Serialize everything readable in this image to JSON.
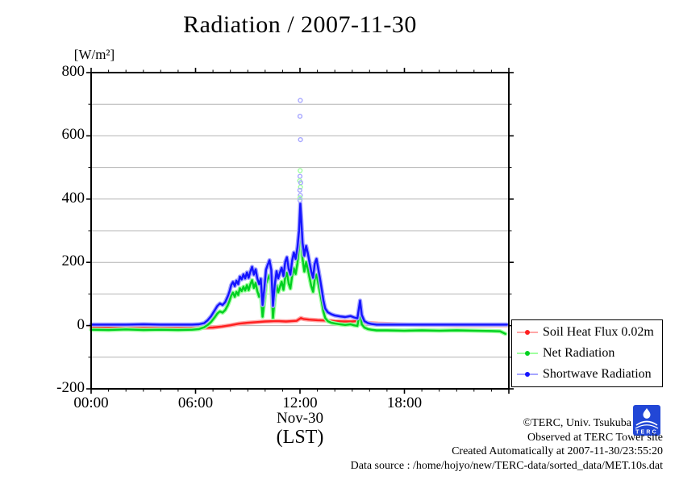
{
  "title": "Radiation / 2007-11-30",
  "y_unit_label": "[W/m²]",
  "colors": {
    "grid": "#b4b4b4",
    "axis": "#000000",
    "background": "#ffffff",
    "logo_blue": "#2247d6"
  },
  "chart_data": {
    "type": "line",
    "title": "Radiation / 2007-11-30",
    "ylabel": "[W/m²]",
    "xlabel_line1": "Nov-30",
    "xlabel_line2": "(LST)",
    "xlim": [
      0,
      24
    ],
    "ylim": [
      -200,
      800
    ],
    "x_ticks": [
      "00:00",
      "06:00",
      "12:00",
      "18:00"
    ],
    "x_tick_hours": [
      0,
      6,
      12,
      18
    ],
    "x_minor_step_hours": 1,
    "y_ticks": [
      -200,
      0,
      200,
      400,
      600,
      800
    ],
    "y_minor_step": 100,
    "grid": "horizontal lines every 100 W/m2",
    "legend_position": "outside lower right",
    "series": [
      {
        "id": "soil-heat-flux",
        "name": "Soil Heat Flux 0.02m",
        "color": "#ff2020",
        "halo": "#ffa6a6",
        "points": [
          [
            0,
            -7
          ],
          [
            1,
            -7
          ],
          [
            2,
            -8
          ],
          [
            3,
            -8
          ],
          [
            4,
            -8
          ],
          [
            5,
            -8
          ],
          [
            6,
            -8
          ],
          [
            6.5,
            -7
          ],
          [
            7,
            -6
          ],
          [
            7.5,
            -3
          ],
          [
            8,
            1
          ],
          [
            8.5,
            6
          ],
          [
            9,
            9
          ],
          [
            9.5,
            11
          ],
          [
            10,
            13
          ],
          [
            10.5,
            14
          ],
          [
            10.8,
            14
          ],
          [
            11.2,
            13
          ],
          [
            11.5,
            14
          ],
          [
            11.8,
            15
          ],
          [
            12.05,
            24
          ],
          [
            12.2,
            21
          ],
          [
            12.5,
            19
          ],
          [
            13,
            17
          ],
          [
            13.5,
            16
          ],
          [
            14,
            14
          ],
          [
            14.5,
            13
          ],
          [
            15,
            13
          ],
          [
            15.2,
            14
          ],
          [
            15.5,
            11
          ],
          [
            16,
            8
          ],
          [
            16.5,
            6
          ],
          [
            17,
            5
          ],
          [
            17.5,
            4
          ],
          [
            18,
            3
          ],
          [
            19,
            2
          ],
          [
            20,
            2
          ],
          [
            21,
            1
          ],
          [
            22,
            1
          ],
          [
            23,
            1
          ],
          [
            23.9,
            1
          ]
        ]
      },
      {
        "id": "net-radiation",
        "name": "Net Radiation",
        "color": "#00d020",
        "halo": "#9fff9f",
        "points": [
          [
            0,
            -13
          ],
          [
            1,
            -14
          ],
          [
            2,
            -12
          ],
          [
            3,
            -14
          ],
          [
            4,
            -13
          ],
          [
            5,
            -14
          ],
          [
            5.8,
            -13
          ],
          [
            6.2,
            -11
          ],
          [
            6.5,
            -5
          ],
          [
            6.7,
            2
          ],
          [
            6.9,
            12
          ],
          [
            7.1,
            26
          ],
          [
            7.25,
            38
          ],
          [
            7.4,
            45
          ],
          [
            7.55,
            41
          ],
          [
            7.7,
            49
          ],
          [
            7.85,
            64
          ],
          [
            7.95,
            78
          ],
          [
            8.05,
            95
          ],
          [
            8.15,
            104
          ],
          [
            8.25,
            91
          ],
          [
            8.35,
            107
          ],
          [
            8.45,
            97
          ],
          [
            8.55,
            118
          ],
          [
            8.65,
            109
          ],
          [
            8.75,
            123
          ],
          [
            8.85,
            111
          ],
          [
            8.95,
            128
          ],
          [
            9.05,
            112
          ],
          [
            9.15,
            131
          ],
          [
            9.25,
            144
          ],
          [
            9.35,
            119
          ],
          [
            9.45,
            135
          ],
          [
            9.55,
            109
          ],
          [
            9.65,
            91
          ],
          [
            9.75,
            106
          ],
          [
            9.85,
            28
          ],
          [
            9.95,
            79
          ],
          [
            10.05,
            133
          ],
          [
            10.15,
            147
          ],
          [
            10.25,
            159
          ],
          [
            10.35,
            131
          ],
          [
            10.45,
            24
          ],
          [
            10.55,
            86
          ],
          [
            10.65,
            127
          ],
          [
            10.75,
            105
          ],
          [
            10.85,
            123
          ],
          [
            10.95,
            139
          ],
          [
            11.05,
            113
          ],
          [
            11.15,
            153
          ],
          [
            11.25,
            167
          ],
          [
            11.35,
            133
          ],
          [
            11.45,
            117
          ],
          [
            11.55,
            158
          ],
          [
            11.65,
            181
          ],
          [
            11.75,
            163
          ],
          [
            11.85,
            197
          ],
          [
            11.95,
            251
          ],
          [
            12.02,
            369
          ],
          [
            12.08,
            286
          ],
          [
            12.15,
            211
          ],
          [
            12.25,
            171
          ],
          [
            12.35,
            201
          ],
          [
            12.45,
            179
          ],
          [
            12.55,
            151
          ],
          [
            12.65,
            125
          ],
          [
            12.75,
            107
          ],
          [
            12.85,
            147
          ],
          [
            12.95,
            161
          ],
          [
            13.05,
            133
          ],
          [
            13.15,
            105
          ],
          [
            13.25,
            75
          ],
          [
            13.35,
            44
          ],
          [
            13.45,
            24
          ],
          [
            13.6,
            14
          ],
          [
            13.8,
            9
          ],
          [
            14,
            7
          ],
          [
            14.3,
            4
          ],
          [
            14.6,
            2
          ],
          [
            14.9,
            4
          ],
          [
            15.1,
            1
          ],
          [
            15.3,
            -1
          ],
          [
            15.45,
            47
          ],
          [
            15.55,
            4
          ],
          [
            15.7,
            -6
          ],
          [
            15.9,
            -11
          ],
          [
            16.1,
            -13
          ],
          [
            16.4,
            -15
          ],
          [
            17,
            -15
          ],
          [
            18,
            -16
          ],
          [
            19,
            -15
          ],
          [
            20,
            -16
          ],
          [
            21,
            -15
          ],
          [
            22,
            -16
          ],
          [
            23,
            -17
          ],
          [
            23.5,
            -18
          ],
          [
            23.8,
            -26
          ]
        ]
      },
      {
        "id": "shortwave-radiation",
        "name": "Shortwave Radiation",
        "color": "#1414ff",
        "halo": "#a6a6ff",
        "points": [
          [
            0,
            3
          ],
          [
            1,
            3
          ],
          [
            2,
            3
          ],
          [
            3,
            4
          ],
          [
            4,
            3
          ],
          [
            5,
            3
          ],
          [
            5.8,
            3
          ],
          [
            6.2,
            4
          ],
          [
            6.5,
            8
          ],
          [
            6.7,
            17
          ],
          [
            6.9,
            30
          ],
          [
            7.1,
            48
          ],
          [
            7.25,
            62
          ],
          [
            7.4,
            70
          ],
          [
            7.55,
            65
          ],
          [
            7.7,
            74
          ],
          [
            7.85,
            92
          ],
          [
            7.95,
            108
          ],
          [
            8.05,
            128
          ],
          [
            8.15,
            138
          ],
          [
            8.25,
            125
          ],
          [
            8.35,
            142
          ],
          [
            8.45,
            131
          ],
          [
            8.55,
            155
          ],
          [
            8.65,
            146
          ],
          [
            8.75,
            162
          ],
          [
            8.85,
            149
          ],
          [
            8.95,
            168
          ],
          [
            9.05,
            151
          ],
          [
            9.15,
            171
          ],
          [
            9.25,
            186
          ],
          [
            9.35,
            161
          ],
          [
            9.45,
            178
          ],
          [
            9.55,
            149
          ],
          [
            9.65,
            131
          ],
          [
            9.75,
            148
          ],
          [
            9.85,
            65
          ],
          [
            9.95,
            118
          ],
          [
            10.05,
            177
          ],
          [
            10.15,
            193
          ],
          [
            10.25,
            207
          ],
          [
            10.35,
            176
          ],
          [
            10.45,
            62
          ],
          [
            10.55,
            128
          ],
          [
            10.65,
            172
          ],
          [
            10.75,
            149
          ],
          [
            10.85,
            168
          ],
          [
            10.95,
            183
          ],
          [
            11.05,
            157
          ],
          [
            11.15,
            201
          ],
          [
            11.25,
            216
          ],
          [
            11.35,
            179
          ],
          [
            11.45,
            161
          ],
          [
            11.55,
            206
          ],
          [
            11.65,
            231
          ],
          [
            11.75,
            211
          ],
          [
            11.85,
            246
          ],
          [
            11.95,
            301
          ],
          [
            12.02,
            386
          ],
          [
            12.08,
            331
          ],
          [
            12.15,
            261
          ],
          [
            12.25,
            221
          ],
          [
            12.35,
            252
          ],
          [
            12.45,
            229
          ],
          [
            12.55,
            199
          ],
          [
            12.65,
            171
          ],
          [
            12.75,
            151
          ],
          [
            12.85,
            196
          ],
          [
            12.95,
            211
          ],
          [
            13.05,
            179
          ],
          [
            13.15,
            149
          ],
          [
            13.25,
            114
          ],
          [
            13.35,
            79
          ],
          [
            13.45,
            54
          ],
          [
            13.6,
            42
          ],
          [
            13.8,
            36
          ],
          [
            14,
            32
          ],
          [
            14.3,
            29
          ],
          [
            14.6,
            27
          ],
          [
            14.9,
            30
          ],
          [
            15.1,
            26
          ],
          [
            15.3,
            23
          ],
          [
            15.45,
            79
          ],
          [
            15.55,
            34
          ],
          [
            15.7,
            14
          ],
          [
            15.9,
            8
          ],
          [
            16.1,
            5
          ],
          [
            16.4,
            3
          ],
          [
            17,
            3
          ],
          [
            18,
            3
          ],
          [
            19,
            3
          ],
          [
            20,
            3
          ],
          [
            21,
            3
          ],
          [
            22,
            3
          ],
          [
            23,
            3
          ],
          [
            23.9,
            3
          ]
        ]
      }
    ],
    "outliers": [
      {
        "h": 12.02,
        "v": 712,
        "s": "shortwave-radiation"
      },
      {
        "h": 12.0,
        "v": 662,
        "s": "shortwave-radiation"
      },
      {
        "h": 12.03,
        "v": 588,
        "s": "shortwave-radiation"
      },
      {
        "h": 12.01,
        "v": 490,
        "s": "net-radiation"
      },
      {
        "h": 12.0,
        "v": 472,
        "s": "shortwave-radiation"
      },
      {
        "h": 11.98,
        "v": 458,
        "s": "net-radiation"
      },
      {
        "h": 12.04,
        "v": 452,
        "s": "shortwave-radiation"
      },
      {
        "h": 12.03,
        "v": 438,
        "s": "net-radiation"
      },
      {
        "h": 11.99,
        "v": 428,
        "s": "shortwave-radiation"
      },
      {
        "h": 12.02,
        "v": 412,
        "s": "shortwave-radiation"
      },
      {
        "h": 12.0,
        "v": 404,
        "s": "net-radiation"
      },
      {
        "h": 12.0,
        "v": 396,
        "s": "shortwave-radiation"
      }
    ]
  },
  "footer": {
    "copyright": "©TERC, Univ. Tsukuba",
    "observed": "Observed at TERC Tower site",
    "created": "Created Automatically at 2007-11-30/23:55:20",
    "data_source": "Data source : /home/hojyo/new/TERC-data/sorted_data/MET.10s.dat",
    "logo_text": "TERC"
  }
}
